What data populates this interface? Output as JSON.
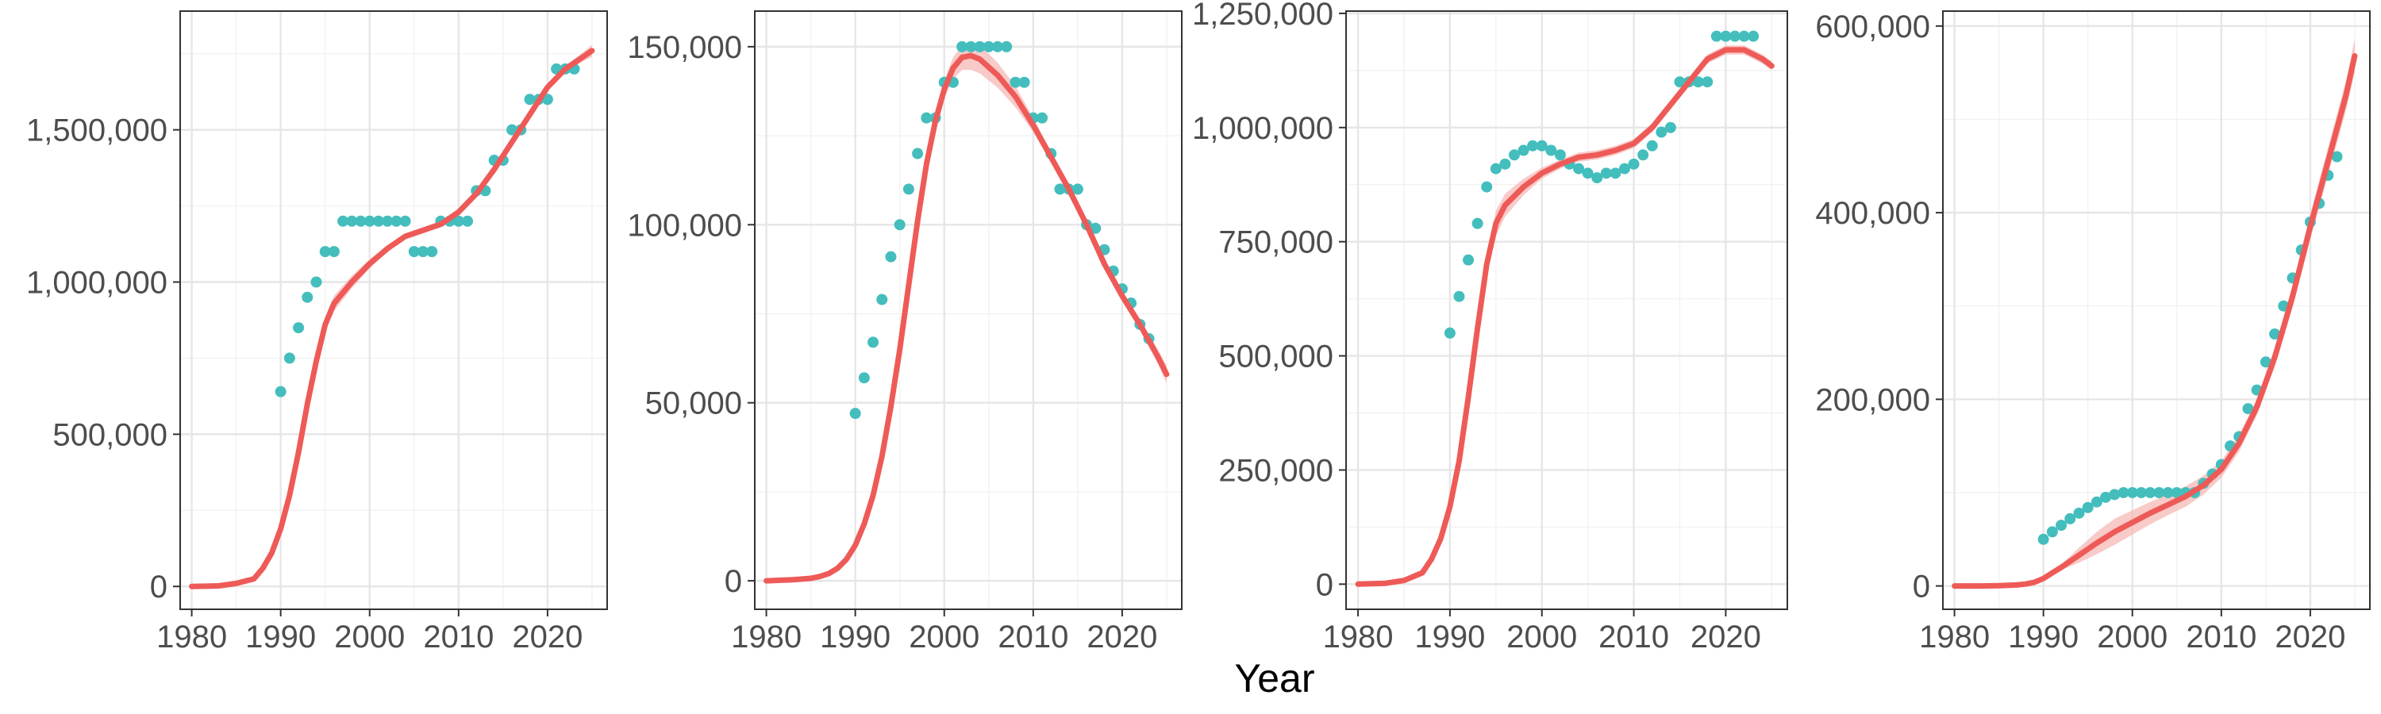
{
  "figure": {
    "xlabel": "Year"
  },
  "colors": {
    "curve": "#ee5a57",
    "band": "#f6b8b6",
    "points": "#44bdbd",
    "grid": "#e6e6e6",
    "frame": "#333333",
    "text": "#4d4d4d"
  },
  "chart_data": [
    {
      "type": "scatter",
      "title": "",
      "xlabel": "",
      "ylabel": "",
      "grid": true,
      "xlim": [
        1978.7,
        2026.7
      ],
      "ylim": [
        -75000,
        1890000
      ],
      "xticks": [
        1980,
        1990,
        2000,
        2010,
        2020
      ],
      "yticks": [
        0,
        500000,
        1000000,
        1500000
      ],
      "ytick_labels": [
        "0",
        "500,000",
        "1,000,000",
        "1,500,000"
      ],
      "series": [
        {
          "kind": "points",
          "x": [
            1990,
            1991,
            1992,
            1993,
            1994,
            1995,
            1996,
            1997,
            1998,
            1999,
            2000,
            2001,
            2002,
            2003,
            2004,
            2005,
            2006,
            2007,
            2008,
            2009,
            2010,
            2011,
            2012,
            2013,
            2014,
            2015,
            2016,
            2017,
            2018,
            2019,
            2020,
            2021,
            2022,
            2023
          ],
          "y": [
            640000,
            750000,
            850000,
            950000,
            1000000,
            1100000,
            1100000,
            1200000,
            1200000,
            1200000,
            1200000,
            1200000,
            1200000,
            1200000,
            1200000,
            1100000,
            1100000,
            1100000,
            1200000,
            1200000,
            1200000,
            1200000,
            1300000,
            1300000,
            1400000,
            1400000,
            1500000,
            1500000,
            1600000,
            1600000,
            1600000,
            1700000,
            1700000,
            1700000
          ]
        },
        {
          "kind": "fit",
          "x": [
            1980,
            1983,
            1985,
            1987,
            1988,
            1989,
            1990,
            1991,
            1992,
            1993,
            1994,
            1995,
            1996,
            1998,
            2000,
            2002,
            2004,
            2006,
            2008,
            2010,
            2012,
            2014,
            2016,
            2018,
            2020,
            2022,
            2024,
            2025
          ],
          "y": [
            0,
            2000,
            10000,
            25000,
            60000,
            110000,
            190000,
            300000,
            440000,
            600000,
            740000,
            860000,
            930000,
            1000000,
            1060000,
            1110000,
            1150000,
            1170000,
            1190000,
            1230000,
            1290000,
            1370000,
            1460000,
            1550000,
            1640000,
            1700000,
            1740000,
            1760000
          ],
          "band": [
            0,
            0,
            0,
            0,
            0,
            0,
            0,
            0,
            0,
            10000,
            20000,
            25000,
            25000,
            20000,
            15000,
            10000,
            10000,
            10000,
            10000,
            10000,
            10000,
            10000,
            10000,
            10000,
            10000,
            10000,
            15000,
            20000
          ]
        }
      ]
    },
    {
      "type": "scatter",
      "title": "",
      "xlabel": "",
      "ylabel": "",
      "grid": true,
      "xlim": [
        1978.7,
        2026.7
      ],
      "ylim": [
        -8000,
        160000
      ],
      "xticks": [
        1980,
        1990,
        2000,
        2010,
        2020
      ],
      "yticks": [
        0,
        50000,
        100000,
        150000
      ],
      "ytick_labels": [
        "0",
        "50,000",
        "100,000",
        "150,000"
      ],
      "series": [
        {
          "kind": "points",
          "x": [
            1990,
            1991,
            1992,
            1993,
            1994,
            1995,
            1996,
            1997,
            1998,
            1999,
            2000,
            2001,
            2002,
            2003,
            2004,
            2005,
            2006,
            2007,
            2008,
            2009,
            2010,
            2011,
            2012,
            2013,
            2014,
            2015,
            2016,
            2017,
            2018,
            2019,
            2020,
            2021,
            2022,
            2023
          ],
          "y": [
            47000,
            57000,
            67000,
            79000,
            91000,
            100000,
            110000,
            120000,
            130000,
            130000,
            140000,
            140000,
            150000,
            150000,
            150000,
            150000,
            150000,
            150000,
            140000,
            140000,
            130000,
            130000,
            120000,
            110000,
            110000,
            110000,
            100000,
            99000,
            93000,
            87000,
            82000,
            78000,
            72000,
            68000
          ]
        },
        {
          "kind": "fit",
          "x": [
            1980,
            1983,
            1985,
            1986,
            1987,
            1988,
            1989,
            1990,
            1991,
            1992,
            1993,
            1994,
            1995,
            1996,
            1997,
            1998,
            1999,
            2000,
            2001,
            2002,
            2003,
            2004,
            2006,
            2008,
            2010,
            2012,
            2014,
            2016,
            2018,
            2020,
            2022,
            2024,
            2025
          ],
          "y": [
            0,
            300,
            700,
            1200,
            2000,
            3500,
            6000,
            10000,
            16000,
            24000,
            35000,
            49000,
            65000,
            83000,
            101000,
            117000,
            129000,
            138000,
            144000,
            147000,
            147500,
            146500,
            142000,
            136000,
            128000,
            119000,
            110000,
            100000,
            89000,
            80000,
            72000,
            63000,
            58000
          ],
          "band": [
            0,
            0,
            0,
            0,
            0,
            0,
            0,
            0,
            0,
            0,
            0,
            0,
            500,
            800,
            1000,
            1500,
            2000,
            2500,
            3000,
            3500,
            4000,
            4000,
            3500,
            3000,
            2000,
            1500,
            1500,
            1500,
            1500,
            1500,
            1500,
            2000,
            2500
          ]
        }
      ]
    },
    {
      "type": "scatter",
      "title": "",
      "xlabel": "",
      "ylabel": "",
      "grid": true,
      "xlim": [
        1978.7,
        2026.7
      ],
      "ylim": [
        -55000,
        1255000
      ],
      "xticks": [
        1980,
        1990,
        2000,
        2010,
        2020
      ],
      "yticks": [
        0,
        250000,
        500000,
        750000,
        1000000,
        1250000
      ],
      "ytick_labels": [
        "0",
        "250,000",
        "500,000",
        "750,000",
        "1,000,000",
        "1,250,000"
      ],
      "series": [
        {
          "kind": "points",
          "x": [
            1990,
            1991,
            1992,
            1993,
            1994,
            1995,
            1996,
            1997,
            1998,
            1999,
            2000,
            2001,
            2002,
            2003,
            2004,
            2005,
            2006,
            2007,
            2008,
            2009,
            2010,
            2011,
            2012,
            2013,
            2014,
            2015,
            2016,
            2017,
            2018,
            2019,
            2020,
            2021,
            2022,
            2023
          ],
          "y": [
            550000,
            630000,
            710000,
            790000,
            870000,
            910000,
            920000,
            940000,
            950000,
            960000,
            960000,
            950000,
            940000,
            920000,
            910000,
            900000,
            890000,
            900000,
            900000,
            910000,
            920000,
            940000,
            960000,
            990000,
            1000000,
            1100000,
            1100000,
            1100000,
            1100000,
            1200000,
            1200000,
            1200000,
            1200000,
            1200000
          ]
        },
        {
          "kind": "fit",
          "x": [
            1980,
            1983,
            1985,
            1987,
            1988,
            1989,
            1990,
            1991,
            1992,
            1993,
            1994,
            1995,
            1996,
            1998,
            2000,
            2002,
            2004,
            2006,
            2008,
            2010,
            2012,
            2014,
            2016,
            2018,
            2020,
            2022,
            2024,
            2025
          ],
          "y": [
            0,
            2000,
            8000,
            25000,
            55000,
            100000,
            170000,
            270000,
            410000,
            560000,
            700000,
            790000,
            830000,
            870000,
            900000,
            920000,
            935000,
            940000,
            950000,
            965000,
            1000000,
            1050000,
            1100000,
            1150000,
            1170000,
            1170000,
            1150000,
            1135000
          ],
          "band": [
            0,
            0,
            0,
            0,
            0,
            0,
            0,
            0,
            0,
            8000,
            20000,
            28000,
            25000,
            18000,
            12000,
            10000,
            10000,
            10000,
            10000,
            10000,
            10000,
            10000,
            10000,
            10000,
            10000,
            10000,
            10000,
            10000
          ]
        }
      ]
    },
    {
      "type": "scatter",
      "title": "",
      "xlabel": "",
      "ylabel": "",
      "grid": true,
      "xlim": [
        1978.7,
        2026.7
      ],
      "ylim": [
        -25000,
        616000
      ],
      "xticks": [
        1980,
        1990,
        2000,
        2010,
        2020
      ],
      "yticks": [
        0,
        200000,
        400000,
        600000
      ],
      "ytick_labels": [
        "0",
        "200,000",
        "400,000",
        "600,000"
      ],
      "series": [
        {
          "kind": "points",
          "x": [
            1990,
            1991,
            1992,
            1993,
            1994,
            1995,
            1996,
            1997,
            1998,
            1999,
            2000,
            2001,
            2002,
            2003,
            2004,
            2005,
            2006,
            2007,
            2008,
            2009,
            2010,
            2011,
            2012,
            2013,
            2014,
            2015,
            2016,
            2017,
            2018,
            2019,
            2020,
            2021,
            2022,
            2023
          ],
          "y": [
            50000,
            58000,
            65000,
            72000,
            78000,
            84000,
            90000,
            95000,
            98000,
            100000,
            100000,
            100000,
            100000,
            100000,
            100000,
            100000,
            100000,
            100000,
            110000,
            120000,
            130000,
            150000,
            160000,
            190000,
            210000,
            240000,
            270000,
            300000,
            330000,
            360000,
            390000,
            410000,
            440000,
            460000
          ]
        },
        {
          "kind": "fit",
          "x": [
            1980,
            1983,
            1985,
            1987,
            1988,
            1989,
            1990,
            1991,
            1992,
            1994,
            1996,
            1998,
            2000,
            2002,
            2004,
            2006,
            2008,
            2010,
            2012,
            2014,
            2016,
            2018,
            2020,
            2022,
            2024,
            2025
          ],
          "y": [
            0,
            0,
            300,
            1000,
            2000,
            4000,
            8000,
            14000,
            20000,
            33000,
            46000,
            58000,
            68000,
            78000,
            87000,
            96000,
            108000,
            125000,
            153000,
            192000,
            245000,
            310000,
            385000,
            455000,
            525000,
            568000
          ],
          "band": [
            0,
            0,
            0,
            0,
            0,
            0,
            0,
            2000,
            3000,
            8000,
            12000,
            14000,
            13000,
            12000,
            11000,
            11000,
            10000,
            9000,
            9000,
            9000,
            10000,
            12000,
            14000,
            15000,
            16000,
            18000
          ]
        }
      ]
    }
  ]
}
